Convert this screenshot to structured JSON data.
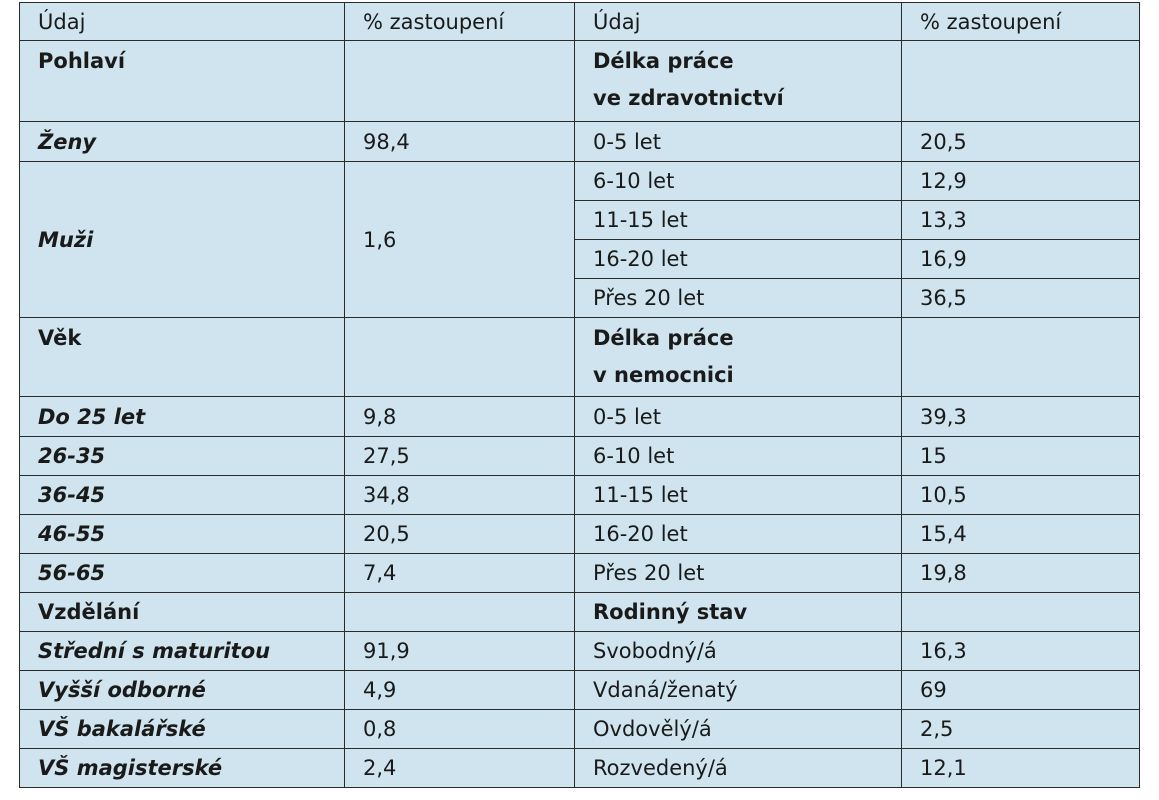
{
  "header": {
    "col1": "Údaj",
    "col2": "% zastoupení",
    "col3": "Údaj",
    "col4": "% zastoupení"
  },
  "left": {
    "pohlavi": {
      "title": "Pohlaví",
      "rows": [
        {
          "label": "Ženy",
          "value": "98,4"
        },
        {
          "label": "Muži",
          "value": "1,6"
        }
      ]
    },
    "vek": {
      "title": "Věk",
      "rows": [
        {
          "label": "Do 25 let",
          "value": "9,8"
        },
        {
          "label": "26-35",
          "value": "27,5"
        },
        {
          "label": "36-45",
          "value": "34,8"
        },
        {
          "label": "46-55",
          "value": "20,5"
        },
        {
          "label": "56-65",
          "value": "7,4"
        }
      ]
    },
    "vzdelani": {
      "title": "Vzdělání",
      "rows": [
        {
          "label": "Střední s maturitou",
          "value": "91,9"
        },
        {
          "label": "Vyšší odborné",
          "value": "4,9"
        },
        {
          "label": "VŠ bakalářské",
          "value": "0,8"
        },
        {
          "label": "VŠ magisterské",
          "value": "2,4"
        }
      ]
    }
  },
  "right": {
    "zdravotnictvi": {
      "title_line1": "Délka práce",
      "title_line2": "ve zdravotnictví",
      "rows": [
        {
          "label": "0-5 let",
          "value": "20,5"
        },
        {
          "label": "6-10 let",
          "value": "12,9"
        },
        {
          "label": "11-15 let",
          "value": "13,3"
        },
        {
          "label": "16-20 let",
          "value": "16,9"
        },
        {
          "label": "Přes 20 let",
          "value": "36,5"
        }
      ]
    },
    "nemocnice": {
      "title_line1": "Délka práce",
      "title_line2": "v nemocnici",
      "rows": [
        {
          "label": "0-5 let",
          "value": "39,3"
        },
        {
          "label": "6-10 let",
          "value": "15"
        },
        {
          "label": "11-15 let",
          "value": "10,5"
        },
        {
          "label": "16-20 let",
          "value": "15,4"
        },
        {
          "label": "Přes 20 let",
          "value": "19,8"
        }
      ]
    },
    "rodinny_stav": {
      "title": "Rodinný stav",
      "rows": [
        {
          "label": "Svobodný/á",
          "value": "16,3"
        },
        {
          "label": "Vdaná/ženatý",
          "value": "69"
        },
        {
          "label": "Ovdovělý/á",
          "value": "2,5"
        },
        {
          "label": "Rozvedený/á",
          "value": "12,1"
        }
      ]
    }
  }
}
